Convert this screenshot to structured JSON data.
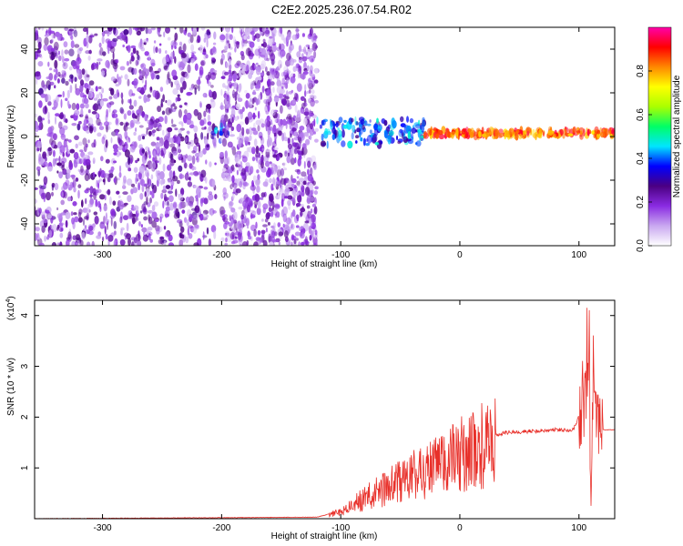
{
  "title": "C2E2.2025.236.07.54.R02",
  "chart_data": [
    {
      "type": "heatmap",
      "xlabel": "Height of straight line (km)",
      "ylabel": "Frequency (Hz)",
      "xlim": [
        -357,
        130
      ],
      "ylim": [
        -50,
        50
      ],
      "xticks": [
        -300,
        -200,
        -100,
        0,
        100
      ],
      "yticks": [
        -40,
        -20,
        0,
        20,
        40
      ],
      "colorbar": {
        "label": "Normalized spectral amplitude",
        "range": [
          0,
          1
        ],
        "ticks": [
          "0.0",
          "0.2",
          "0.4",
          "0.6",
          "0.8"
        ],
        "colors": [
          "#ffffff",
          "#c9a8f0",
          "#8a2be2",
          "#4b0082",
          "#0000ff",
          "#00e5ff",
          "#00ff66",
          "#aaff00",
          "#ffff00",
          "#ff8800",
          "#ff0000",
          "#ff00aa"
        ]
      },
      "regions": [
        {
          "x": [
            -357,
            -205
          ],
          "freq_range": [
            -50,
            50
          ],
          "level": 0.18
        },
        {
          "x": [
            -210,
            -195
          ],
          "freq_range": [
            -2,
            6
          ],
          "level": 0.35
        },
        {
          "x": [
            -200,
            -120
          ],
          "freq_range": [
            -50,
            50
          ],
          "level": 0.15
        },
        {
          "x": [
            -120,
            -30
          ],
          "freq_range": [
            -4,
            8
          ],
          "level": 0.38
        },
        {
          "x": [
            -30,
            130
          ],
          "freq_range": [
            0,
            3
          ],
          "level": 0.85
        }
      ]
    },
    {
      "type": "line",
      "xlabel": "Height of straight line (km)",
      "ylabel": "SNR (10 * v/v)",
      "y_scale_label": "(x10",
      "y_scale_exp": "4",
      "xlim": [
        -357,
        130
      ],
      "ylim": [
        0,
        4.3
      ],
      "xticks": [
        -300,
        -200,
        -100,
        0,
        100
      ],
      "yticks": [
        1,
        2,
        3,
        4
      ],
      "color": "#e8302a",
      "envelope": {
        "x": [
          -357,
          -200,
          -120,
          -100,
          -80,
          -60,
          -40,
          -20,
          0,
          20,
          40,
          60,
          80,
          95,
          100,
          105,
          108,
          110,
          112,
          115,
          130
        ],
        "y": [
          0.0,
          0.02,
          0.03,
          0.15,
          0.45,
          0.7,
          0.95,
          1.15,
          1.4,
          1.6,
          1.7,
          1.72,
          1.75,
          1.75,
          2.0,
          2.4,
          4.3,
          0.1,
          2.7,
          1.75,
          1.75
        ]
      }
    }
  ]
}
